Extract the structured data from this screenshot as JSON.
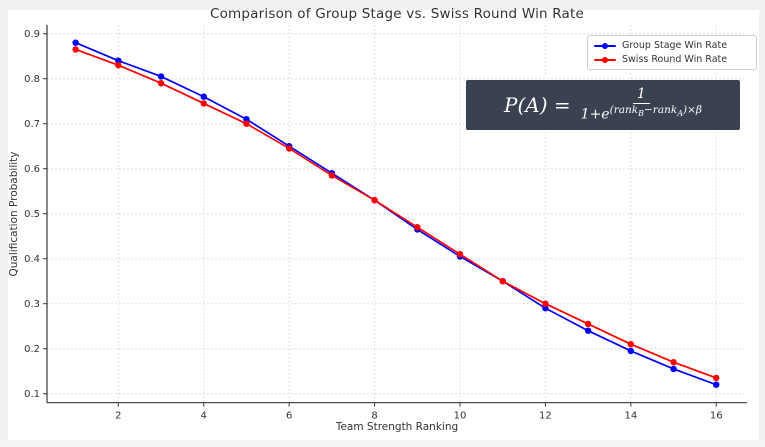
{
  "page": {
    "background": "#eff1f2",
    "figure_background": "#ffffff"
  },
  "chart": {
    "title": "Comparison of Group Stage vs. Swiss Round Win Rate",
    "xlabel": "Team Strength Ranking",
    "ylabel": "Qualification Probability"
  },
  "chart_data": {
    "type": "line",
    "title": "Comparison of Group Stage vs. Swiss Round Win Rate",
    "xlabel": "Team Strength Ranking",
    "ylabel": "Qualification Probability",
    "x": [
      1,
      2,
      3,
      4,
      5,
      6,
      7,
      8,
      9,
      10,
      11,
      12,
      13,
      14,
      15,
      16
    ],
    "series": [
      {
        "name": "Group Stage Win Rate",
        "color": "#0000ff",
        "marker": "circle",
        "values": [
          0.88,
          0.84,
          0.805,
          0.76,
          0.71,
          0.65,
          0.59,
          0.53,
          0.465,
          0.405,
          0.35,
          0.29,
          0.24,
          0.195,
          0.155,
          0.12
        ]
      },
      {
        "name": "Swiss Round Win Rate",
        "color": "#ff0000",
        "marker": "circle",
        "values": [
          0.865,
          0.83,
          0.79,
          0.745,
          0.7,
          0.645,
          0.585,
          0.53,
          0.47,
          0.41,
          0.35,
          0.3,
          0.255,
          0.21,
          0.17,
          0.135
        ]
      }
    ],
    "xticks": [
      2,
      4,
      6,
      8,
      10,
      12,
      14,
      16
    ],
    "yticks": [
      0.1,
      0.2,
      0.3,
      0.4,
      0.5,
      0.6,
      0.7,
      0.8,
      0.9
    ],
    "xlim": [
      0.33,
      16.72
    ],
    "ylim": [
      0.08,
      0.92
    ],
    "grid": true,
    "grid_style": "dotted",
    "legend_position": "upper right"
  },
  "legend": {
    "items": [
      {
        "label": "Group Stage Win Rate",
        "color": "#0000ff"
      },
      {
        "label": "Swiss Round Win Rate",
        "color": "#ff0000"
      }
    ]
  },
  "formula": {
    "background": "#3a4150",
    "lhs": "P(A) =",
    "numerator": "1",
    "den_base": "1+e",
    "exp_open": "(rank",
    "exp_sub_b": "B",
    "exp_mid": "−rank",
    "exp_sub_a": "A",
    "exp_close": ")×β"
  }
}
